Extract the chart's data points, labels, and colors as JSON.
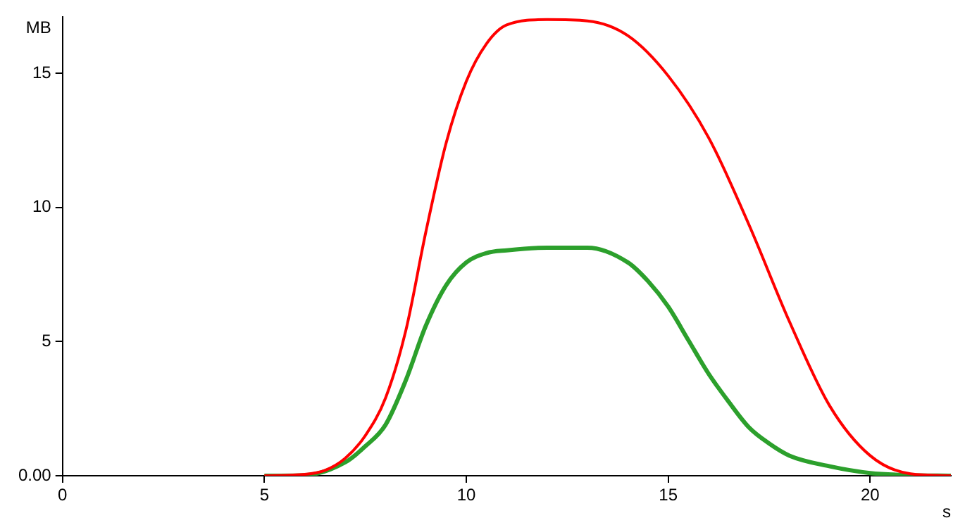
{
  "chart_data": {
    "type": "line",
    "xlabel": "s",
    "ylabel": "MB",
    "xlim": [
      0,
      22
    ],
    "ylim": [
      0,
      17.1
    ],
    "xticks": [
      0,
      5,
      10,
      15,
      20
    ],
    "yticks": [
      {
        "value": 0,
        "label": "0.00"
      },
      5,
      10,
      15
    ],
    "grid": false,
    "legend": false,
    "marker": "none",
    "line_style": "solid",
    "series": [
      {
        "color": "#ff0000",
        "x": [
          5,
          6,
          6.5,
          7,
          7.5,
          8,
          8.5,
          9,
          9.5,
          10,
          10.5,
          11,
          12,
          13,
          14,
          15,
          16,
          17,
          18,
          19,
          20,
          21,
          22
        ],
        "values": [
          0,
          0.05,
          0.2,
          0.65,
          1.5,
          2.9,
          5.4,
          9.1,
          12.4,
          14.7,
          16.1,
          16.8,
          17,
          16.95,
          16.4,
          14.9,
          12.6,
          9.35,
          5.75,
          2.6,
          0.75,
          0.07,
          0
        ]
      },
      {
        "color": "#2ca02c",
        "x": [
          5,
          6,
          7,
          7.5,
          8,
          8.5,
          9,
          9.5,
          10,
          10.5,
          11,
          12,
          13,
          14,
          14.5,
          15,
          15.5,
          16,
          16.5,
          17,
          17.5,
          18,
          19,
          20,
          21,
          22
        ],
        "values": [
          0,
          0.02,
          0.5,
          1.1,
          1.9,
          3.55,
          5.6,
          7.1,
          7.95,
          8.3,
          8.4,
          8.5,
          8.5,
          7.95,
          7.25,
          6.3,
          5.05,
          3.8,
          2.75,
          1.8,
          1.2,
          0.75,
          0.35,
          0.1,
          0.02,
          0
        ]
      }
    ]
  }
}
